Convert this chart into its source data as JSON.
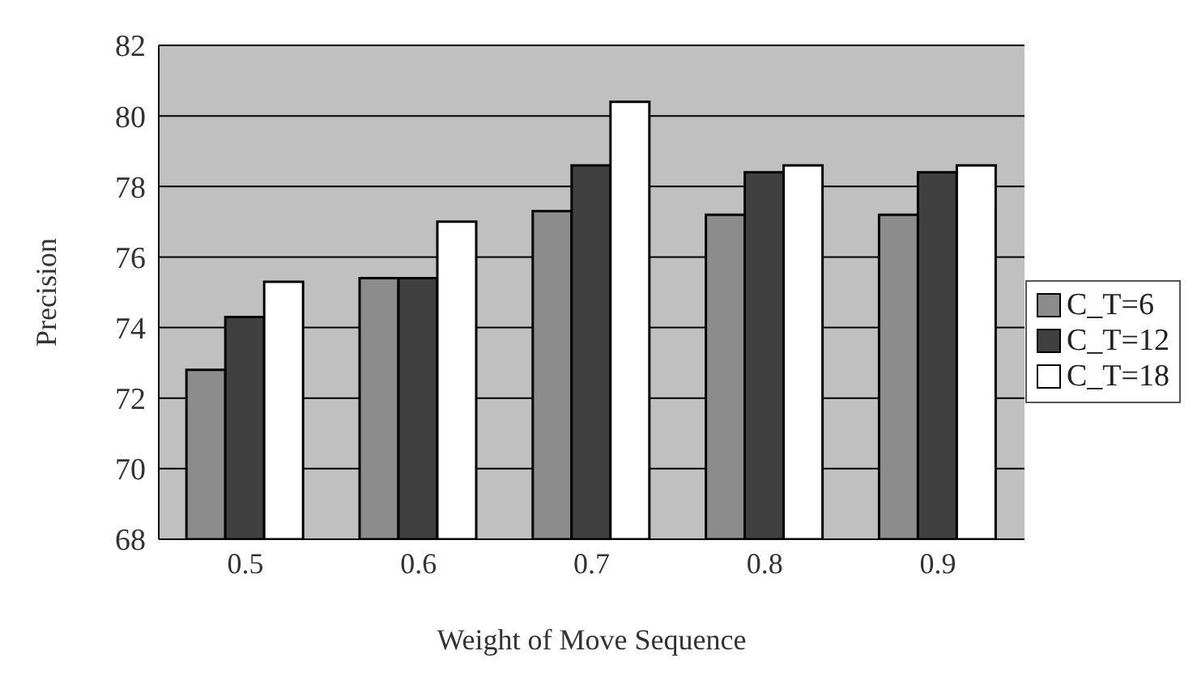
{
  "chart_data": {
    "type": "bar",
    "xlabel": "Weight of Move Sequence",
    "ylabel": "Precision",
    "categories": [
      "0.5",
      "0.6",
      "0.7",
      "0.8",
      "0.9"
    ],
    "series": [
      {
        "name": "C_T=6",
        "color": "#8c8c8c",
        "values": [
          72.8,
          75.4,
          77.3,
          77.2,
          77.2
        ]
      },
      {
        "name": "C_T=12",
        "color": "#404040",
        "values": [
          74.3,
          75.4,
          78.6,
          78.4,
          78.4
        ]
      },
      {
        "name": "C_T=18",
        "color": "#ffffff",
        "values": [
          75.3,
          77.0,
          80.4,
          78.6,
          78.6
        ]
      }
    ],
    "ylim": [
      68,
      82
    ],
    "yticks": [
      68,
      70,
      72,
      74,
      76,
      78,
      80,
      82
    ],
    "grid": "y",
    "legend": "right"
  }
}
